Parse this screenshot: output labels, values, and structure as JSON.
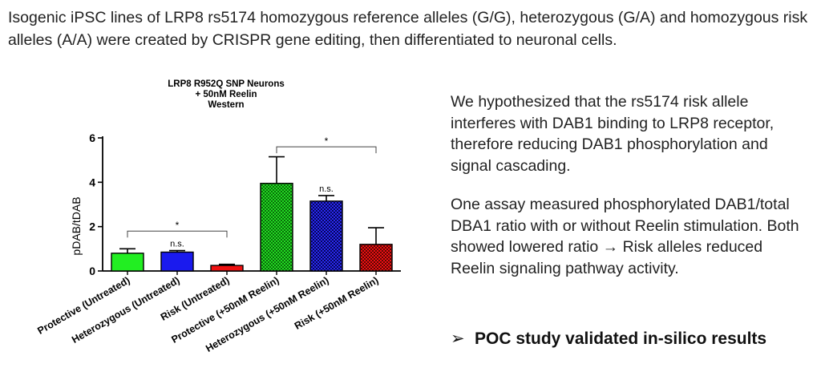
{
  "intro_text": "Isogenic iPSC lines of LRP8 rs5174 homozygous reference alleles (G/G), heterozygous (G/A) and homozygous risk alleles (A/A) were created by CRISPR gene editing, then differentiated to neuronal cells.",
  "side_text": {
    "paragraph1": "We hypothesized that the rs5174 risk allele interferes with DAB1 binding to LRP8 receptor, therefore reducing DAB1 phosphorylation and signal cascading.",
    "paragraph2": "One assay measured phosphorylated DAB1/total DBA1 ratio with or without Reelin stimulation. Both showed lowered ratio → Risk alleles reduced Reelin signaling pathway activity."
  },
  "conclusion": {
    "arrow": "➢",
    "text": "POC study validated in-silico results"
  },
  "chart_data": {
    "type": "bar",
    "title": [
      "LRP8 R952Q SNP Neurons",
      "+ 50nM Reelin",
      "Western"
    ],
    "xlabel": "",
    "ylabel": "pDAB/tDAB",
    "ylim": [
      0,
      6
    ],
    "yticks": [
      0,
      2,
      4,
      6
    ],
    "categories": [
      "Protective (Untreated)",
      "Heterozygous (Untreated)",
      "Risk (Untreated)",
      "Protective (+50nM Reelin)",
      "Heterozygous (+50nM Reelin)",
      "Risk (+50nM Reelin)"
    ],
    "values": [
      0.8,
      0.85,
      0.25,
      3.95,
      3.15,
      1.2
    ],
    "errors": [
      0.2,
      0.07,
      0.05,
      1.2,
      0.25,
      0.75
    ],
    "colors": [
      "#22ee22",
      "#1a1aee",
      "#ee1111",
      "#22dd22",
      "#1a1add",
      "#dd1111"
    ],
    "patterned": [
      false,
      false,
      false,
      true,
      true,
      true
    ],
    "annotations": [
      {
        "bar": 1,
        "label": "n.s."
      },
      {
        "bar": 4,
        "label": "n.s."
      }
    ],
    "brackets": [
      {
        "from": 0,
        "to": 2,
        "level": 1.8,
        "label": "*"
      },
      {
        "from": 3,
        "to": 5,
        "level": 5.6,
        "label": "*"
      }
    ],
    "grid": false,
    "legend": "none"
  }
}
